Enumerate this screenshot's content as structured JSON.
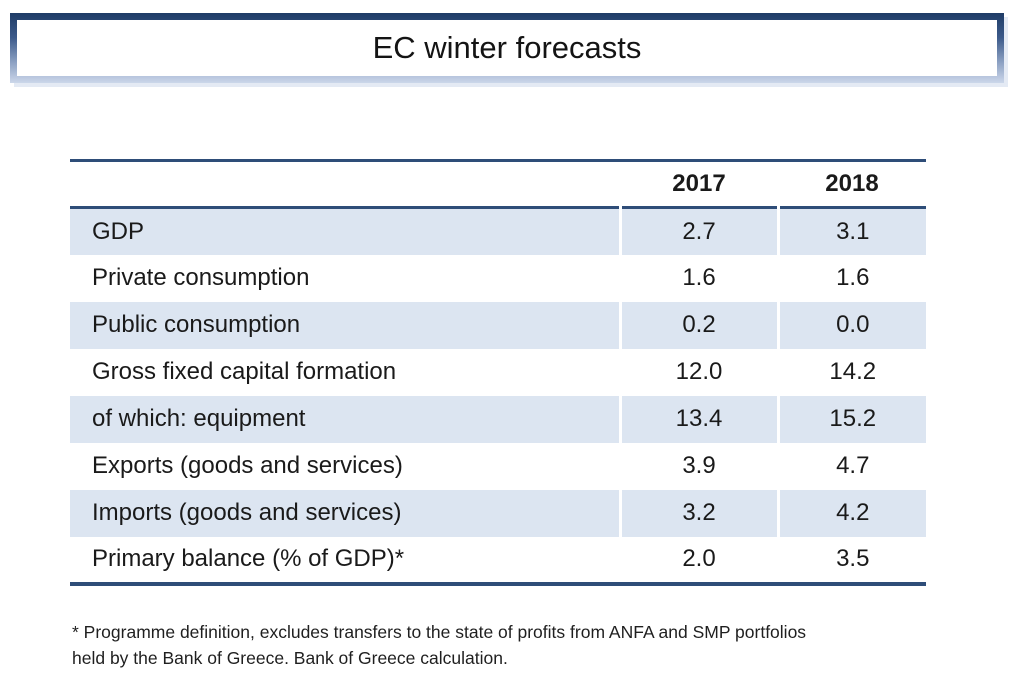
{
  "slide_title": "EC winter forecasts",
  "table": {
    "header": {
      "col_2017": "2017",
      "col_2018": "2018"
    },
    "rows": [
      [
        "GDP",
        "2.7",
        "3.1"
      ],
      [
        "Private consumption",
        "1.6",
        "1.6"
      ],
      [
        "Public consumption",
        "0.2",
        "0.0"
      ],
      [
        "Gross fixed capital formation",
        "12.0",
        "14.2"
      ],
      [
        "of which: equipment",
        "13.4",
        "15.2"
      ],
      [
        "Exports (goods and services)",
        "3.9",
        "4.7"
      ],
      [
        "Imports (goods and services)",
        "3.2",
        "4.2"
      ],
      [
        "Primary balance (% of GDP)*",
        "2.0",
        "3.5"
      ]
    ]
  },
  "footnote": {
    "line1": "* Programme definition, excludes transfers to the state of profits from ANFA and SMP portfolios",
    "line2": "held by the Bank of Greece. Bank of Greece calculation."
  },
  "colors": {
    "table_line": "#2e4d78",
    "row_band": "#dce5f1",
    "title_border_dark": "#1f3c66",
    "title_border_light": "#ccd7ea",
    "text": "#1a1a1a"
  },
  "chart_data": {
    "type": "table",
    "title": "EC winter forecasts",
    "columns": [
      "",
      "2017",
      "2018"
    ],
    "rows": [
      [
        "GDP",
        2.7,
        3.1
      ],
      [
        "Private consumption",
        1.6,
        1.6
      ],
      [
        "Public consumption",
        0.2,
        0.0
      ],
      [
        "Gross fixed capital formation",
        12.0,
        14.2
      ],
      [
        "of which: equipment",
        13.4,
        15.2
      ],
      [
        "Exports (goods and services)",
        3.9,
        4.7
      ],
      [
        "Imports (goods and services)",
        3.2,
        4.2
      ],
      [
        "Primary balance (% of GDP)*",
        2.0,
        3.5
      ]
    ],
    "footnote": "* Programme definition, excludes transfers to the state of profits from ANFA and SMP portfolios held by the Bank of Greece. Bank of Greece calculation."
  }
}
